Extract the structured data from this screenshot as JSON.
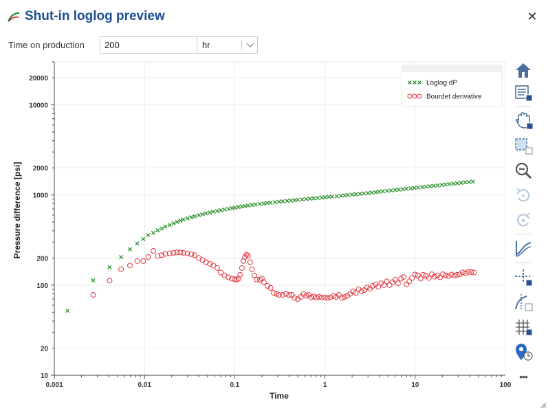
{
  "dialog": {
    "title": "Shut-in loglog preview",
    "close_glyph": "✕",
    "logo_icon": "curve-logo-icon",
    "close_icon": "close-icon"
  },
  "form": {
    "time_label": "Time on production",
    "time_value": "200",
    "unit_value": "hr",
    "unit_caret_icon": "chevron-down-icon"
  },
  "toolbar": {
    "items": [
      "home-icon",
      "legend-toggle-icon",
      "pan-icon",
      "box-zoom-icon",
      "zoom-icon",
      "undo-icon",
      "redo-icon",
      "fit-curve-icon",
      "crosshair-icon",
      "tangent-line-icon",
      "grid-toggle-icon",
      "marker-clock-icon",
      "more-icon"
    ],
    "more_glyph": "•••"
  },
  "chart_data": {
    "type": "scatter",
    "x_scale": "log",
    "y_scale": "log",
    "xlabel": "Time",
    "ylabel": "Pressure difference [psi]",
    "xlim": [
      0.001,
      100
    ],
    "ylim": [
      10,
      30000
    ],
    "x_ticks": [
      {
        "value": 0.001,
        "label": "0.001"
      },
      {
        "value": 0.01,
        "label": "0.01"
      },
      {
        "value": 0.1,
        "label": "0.1"
      },
      {
        "value": 1,
        "label": "1"
      },
      {
        "value": 10,
        "label": "10"
      },
      {
        "value": 100,
        "label": "100"
      }
    ],
    "y_ticks": [
      {
        "value": 10,
        "label": "10"
      },
      {
        "value": 20,
        "label": "20"
      },
      {
        "value": 100,
        "label": "100"
      },
      {
        "value": 200,
        "label": "200"
      },
      {
        "value": 1000,
        "label": "1000"
      },
      {
        "value": 2000,
        "label": "2000"
      },
      {
        "value": 10000,
        "label": "10000"
      },
      {
        "value": 20000,
        "label": "20000"
      }
    ],
    "grid": true,
    "legend_position": "top-right",
    "series": [
      {
        "name": "Loglog dP",
        "marker": "x",
        "color": "#1f8a1f",
        "points": [
          [
            0.0014,
            52
          ],
          [
            0.0027,
            113
          ],
          [
            0.0041,
            158
          ],
          [
            0.0055,
            205
          ],
          [
            0.0069,
            250
          ],
          [
            0.0083,
            290
          ],
          [
            0.0097,
            325
          ],
          [
            0.011,
            360
          ],
          [
            0.0125,
            380
          ],
          [
            0.014,
            405
          ],
          [
            0.0155,
            425
          ],
          [
            0.017,
            445
          ],
          [
            0.019,
            465
          ],
          [
            0.021,
            485
          ],
          [
            0.023,
            503
          ],
          [
            0.025,
            520
          ],
          [
            0.027,
            535
          ],
          [
            0.03,
            550
          ],
          [
            0.033,
            567
          ],
          [
            0.036,
            580
          ],
          [
            0.04,
            598
          ],
          [
            0.044,
            612
          ],
          [
            0.048,
            625
          ],
          [
            0.053,
            640
          ],
          [
            0.058,
            652
          ],
          [
            0.064,
            665
          ],
          [
            0.07,
            678
          ],
          [
            0.077,
            690
          ],
          [
            0.085,
            702
          ],
          [
            0.093,
            714
          ],
          [
            0.1,
            722
          ],
          [
            0.11,
            735
          ],
          [
            0.12,
            745
          ],
          [
            0.13,
            755
          ],
          [
            0.14,
            765
          ],
          [
            0.155,
            775
          ],
          [
            0.17,
            785
          ],
          [
            0.19,
            795
          ],
          [
            0.21,
            805
          ],
          [
            0.23,
            815
          ],
          [
            0.25,
            822
          ],
          [
            0.28,
            832
          ],
          [
            0.31,
            842
          ],
          [
            0.34,
            850
          ],
          [
            0.38,
            860
          ],
          [
            0.42,
            868
          ],
          [
            0.46,
            876
          ],
          [
            0.5,
            884
          ],
          [
            0.56,
            893
          ],
          [
            0.62,
            902
          ],
          [
            0.68,
            910
          ],
          [
            0.75,
            918
          ],
          [
            0.83,
            927
          ],
          [
            0.92,
            936
          ],
          [
            1.0,
            943
          ],
          [
            1.1,
            952
          ],
          [
            1.2,
            960
          ],
          [
            1.35,
            970
          ],
          [
            1.5,
            980
          ],
          [
            1.65,
            990
          ],
          [
            1.8,
            1000
          ],
          [
            2.0,
            1010
          ],
          [
            2.2,
            1020
          ],
          [
            2.45,
            1030
          ],
          [
            2.7,
            1040
          ],
          [
            3.0,
            1052
          ],
          [
            3.3,
            1063
          ],
          [
            3.65,
            1074
          ],
          [
            4.0,
            1086
          ],
          [
            4.4,
            1097
          ],
          [
            4.9,
            1110
          ],
          [
            5.4,
            1122
          ],
          [
            6.0,
            1135
          ],
          [
            6.6,
            1148
          ],
          [
            7.3,
            1160
          ],
          [
            8.0,
            1172
          ],
          [
            8.9,
            1185
          ],
          [
            9.8,
            1198
          ],
          [
            10.8,
            1210
          ],
          [
            12,
            1224
          ],
          [
            13.2,
            1237
          ],
          [
            14.6,
            1250
          ],
          [
            16.1,
            1264
          ],
          [
            17.8,
            1278
          ],
          [
            19.7,
            1292
          ],
          [
            21.7,
            1306
          ],
          [
            24,
            1320
          ],
          [
            26.5,
            1335
          ],
          [
            29.3,
            1350
          ],
          [
            32.4,
            1365
          ],
          [
            35.8,
            1380
          ],
          [
            39.5,
            1395
          ],
          [
            43.6,
            1410
          ]
        ]
      },
      {
        "name": "Bourdet derivative",
        "marker": "o",
        "color": "#e2353c",
        "points": [
          [
            0.0027,
            78
          ],
          [
            0.0041,
            112
          ],
          [
            0.0055,
            150
          ],
          [
            0.0069,
            165
          ],
          [
            0.0083,
            185
          ],
          [
            0.0097,
            185
          ],
          [
            0.011,
            205
          ],
          [
            0.0125,
            240
          ],
          [
            0.014,
            210
          ],
          [
            0.0155,
            215
          ],
          [
            0.017,
            222
          ],
          [
            0.019,
            225
          ],
          [
            0.021,
            228
          ],
          [
            0.023,
            230
          ],
          [
            0.025,
            230
          ],
          [
            0.027,
            228
          ],
          [
            0.03,
            225
          ],
          [
            0.033,
            220
          ],
          [
            0.036,
            215
          ],
          [
            0.04,
            200
          ],
          [
            0.044,
            190
          ],
          [
            0.048,
            180
          ],
          [
            0.053,
            172
          ],
          [
            0.058,
            165
          ],
          [
            0.064,
            155
          ],
          [
            0.07,
            138
          ],
          [
            0.077,
            128
          ],
          [
            0.085,
            122
          ],
          [
            0.093,
            118
          ],
          [
            0.1,
            116
          ],
          [
            0.105,
            115
          ],
          [
            0.11,
            118
          ],
          [
            0.115,
            130
          ],
          [
            0.12,
            155
          ],
          [
            0.125,
            185
          ],
          [
            0.13,
            205
          ],
          [
            0.135,
            218
          ],
          [
            0.14,
            212
          ],
          [
            0.148,
            180
          ],
          [
            0.155,
            150
          ],
          [
            0.165,
            128
          ],
          [
            0.175,
            115
          ],
          [
            0.19,
            115
          ],
          [
            0.2,
            118
          ],
          [
            0.21,
            108
          ],
          [
            0.23,
            98
          ],
          [
            0.25,
            93
          ],
          [
            0.27,
            82
          ],
          [
            0.29,
            80
          ],
          [
            0.31,
            78
          ],
          [
            0.34,
            78
          ],
          [
            0.37,
            80
          ],
          [
            0.4,
            78
          ],
          [
            0.43,
            78
          ],
          [
            0.46,
            72
          ],
          [
            0.5,
            70
          ],
          [
            0.54,
            74
          ],
          [
            0.58,
            80
          ],
          [
            0.62,
            76
          ],
          [
            0.66,
            78
          ],
          [
            0.7,
            73
          ],
          [
            0.75,
            75
          ],
          [
            0.8,
            73
          ],
          [
            0.86,
            74
          ],
          [
            0.92,
            73
          ],
          [
            1.0,
            73
          ],
          [
            1.07,
            72
          ],
          [
            1.15,
            73
          ],
          [
            1.24,
            76
          ],
          [
            1.33,
            74
          ],
          [
            1.43,
            78
          ],
          [
            1.54,
            72
          ],
          [
            1.65,
            74
          ],
          [
            1.77,
            76
          ],
          [
            1.9,
            80
          ],
          [
            2.05,
            85
          ],
          [
            2.2,
            82
          ],
          [
            2.36,
            90
          ],
          [
            2.54,
            85
          ],
          [
            2.73,
            88
          ],
          [
            2.93,
            94
          ],
          [
            3.15,
            91
          ],
          [
            3.38,
            98
          ],
          [
            3.64,
            102
          ],
          [
            3.9,
            96
          ],
          [
            4.2,
            105
          ],
          [
            4.5,
            100
          ],
          [
            4.85,
            110
          ],
          [
            5.2,
            100
          ],
          [
            5.6,
            108
          ],
          [
            6.0,
            115
          ],
          [
            6.45,
            105
          ],
          [
            6.95,
            118
          ],
          [
            7.45,
            123
          ],
          [
            8.0,
            102
          ],
          [
            8.6,
            110
          ],
          [
            9.25,
            120
          ],
          [
            9.95,
            131
          ],
          [
            10.7,
            128
          ],
          [
            11.5,
            118
          ],
          [
            12.3,
            130
          ],
          [
            13.2,
            127
          ],
          [
            14.2,
            120
          ],
          [
            15.3,
            132
          ],
          [
            16.4,
            124
          ],
          [
            17.6,
            128
          ],
          [
            18.9,
            122
          ],
          [
            20.3,
            132
          ],
          [
            21.8,
            128
          ],
          [
            23.5,
            126
          ],
          [
            25.2,
            131
          ],
          [
            27.1,
            128
          ],
          [
            29.1,
            130
          ],
          [
            31.3,
            132
          ],
          [
            33.6,
            138
          ],
          [
            36.1,
            135
          ],
          [
            38.8,
            140
          ],
          [
            41.7,
            140
          ],
          [
            44.8,
            138
          ]
        ]
      }
    ]
  }
}
